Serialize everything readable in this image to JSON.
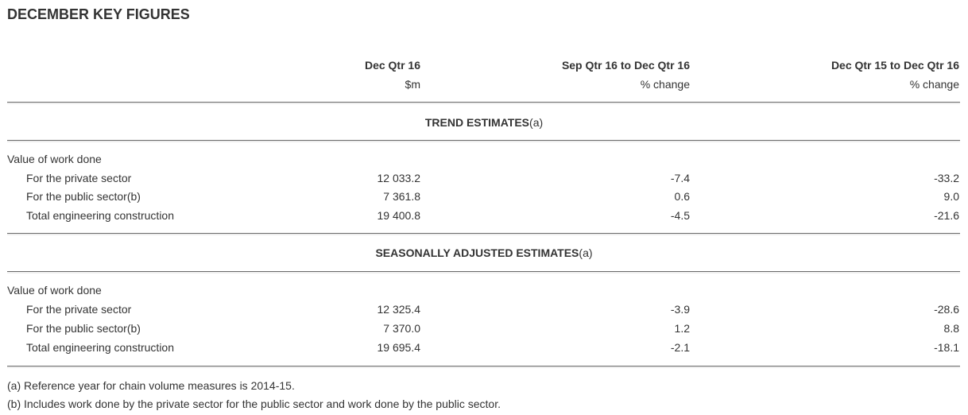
{
  "title": "DECEMBER KEY FIGURES",
  "columns": [
    {
      "header": "Dec Qtr 16",
      "unit": "$m"
    },
    {
      "header": "Sep Qtr 16 to Dec Qtr 16",
      "unit": "% change"
    },
    {
      "header": "Dec Qtr 15 to Dec Qtr 16",
      "unit": "% change"
    }
  ],
  "sections": [
    {
      "title": "TREND ESTIMATES",
      "note": "(a)",
      "group": "Value of work done",
      "rows": [
        {
          "label": "For the private sector",
          "values": [
            "12 033.2",
            "-7.4",
            "-33.2"
          ]
        },
        {
          "label": "For the public sector(b)",
          "values": [
            "7 361.8",
            "0.6",
            "9.0"
          ]
        },
        {
          "label": "Total engineering construction",
          "values": [
            "19 400.8",
            "-4.5",
            "-21.6"
          ]
        }
      ]
    },
    {
      "title": "SEASONALLY ADJUSTED ESTIMATES",
      "note": "(a)",
      "group": "Value of work done",
      "rows": [
        {
          "label": "For the private sector",
          "values": [
            "12 325.4",
            "-3.9",
            "-28.6"
          ]
        },
        {
          "label": "For the public sector(b)",
          "values": [
            "7 370.0",
            "1.2",
            "8.8"
          ]
        },
        {
          "label": "Total engineering construction",
          "values": [
            "19 695.4",
            "-2.1",
            "-18.1"
          ]
        }
      ]
    }
  ],
  "footnotes": [
    "(a) Reference year for chain volume measures is 2014-15.",
    "(b) Includes work done by the private sector for the public sector and work done by the public sector."
  ]
}
